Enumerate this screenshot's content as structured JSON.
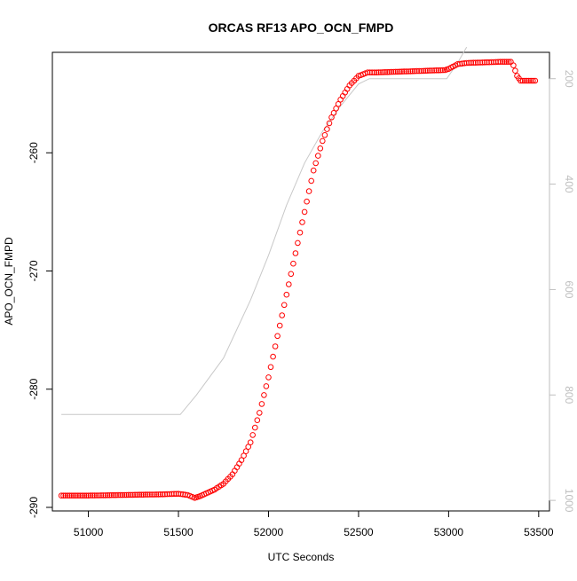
{
  "chart_data": {
    "type": "scatter",
    "title": "ORCAS RF13 APO_OCN_FMPD",
    "xlabel": "UTC Seconds",
    "ylabel": "APO_OCN_FMPD",
    "xlim": [
      50800,
      53560
    ],
    "ylim": [
      -290.3,
      -251.5
    ],
    "y2lim": [
      1020,
      150
    ],
    "grid": false,
    "x_ticks": [
      51000,
      51500,
      52000,
      52500,
      53000,
      53500
    ],
    "y_ticks": [
      -290,
      -280,
      -270,
      -260
    ],
    "y2_ticks": [
      200,
      400,
      600,
      800,
      1000
    ],
    "colors": {
      "points": "#ff0000",
      "line": "#c8c8c8",
      "axis": "#000000",
      "secondary_axis": "#bebebe"
    },
    "series": [
      {
        "marker": "open-circle",
        "axis": "left",
        "points": [
          [
            50850,
            -289.0
          ],
          [
            51000,
            -289.0
          ],
          [
            51200,
            -288.95
          ],
          [
            51400,
            -288.9
          ],
          [
            51500,
            -288.85
          ],
          [
            51550,
            -288.95
          ],
          [
            51590,
            -289.2
          ],
          [
            51620,
            -289.05
          ],
          [
            51700,
            -288.5
          ],
          [
            51750,
            -288.0
          ],
          [
            51800,
            -287.2
          ],
          [
            51850,
            -286.0
          ],
          [
            51900,
            -284.5
          ],
          [
            51950,
            -282.0
          ],
          [
            52000,
            -279.0
          ],
          [
            52050,
            -275.5
          ],
          [
            52100,
            -272.0
          ],
          [
            52150,
            -268.5
          ],
          [
            52200,
            -265.0
          ],
          [
            52250,
            -261.5
          ],
          [
            52300,
            -259.0
          ],
          [
            52350,
            -257.0
          ],
          [
            52400,
            -255.5
          ],
          [
            52450,
            -254.3
          ],
          [
            52500,
            -253.5
          ],
          [
            52550,
            -253.2
          ],
          [
            52600,
            -253.2
          ],
          [
            52800,
            -253.1
          ],
          [
            52980,
            -253.0
          ],
          [
            53000,
            -252.9
          ],
          [
            53050,
            -252.5
          ],
          [
            53100,
            -252.4
          ],
          [
            53200,
            -252.35
          ],
          [
            53300,
            -252.3
          ],
          [
            53345,
            -252.3
          ],
          [
            53360,
            -252.6
          ],
          [
            53380,
            -253.5
          ],
          [
            53400,
            -253.9
          ],
          [
            53480,
            -253.9
          ]
        ]
      },
      {
        "marker": "line",
        "axis": "right",
        "points": [
          [
            50850,
            837
          ],
          [
            51510,
            837
          ],
          [
            51600,
            800
          ],
          [
            51750,
            730
          ],
          [
            51900,
            620
          ],
          [
            52000,
            535
          ],
          [
            52100,
            440
          ],
          [
            52200,
            360
          ],
          [
            52300,
            300
          ],
          [
            52400,
            252
          ],
          [
            52500,
            210
          ],
          [
            52560,
            200
          ],
          [
            52990,
            200
          ],
          [
            53050,
            170
          ],
          [
            53100,
            140
          ]
        ]
      }
    ]
  }
}
